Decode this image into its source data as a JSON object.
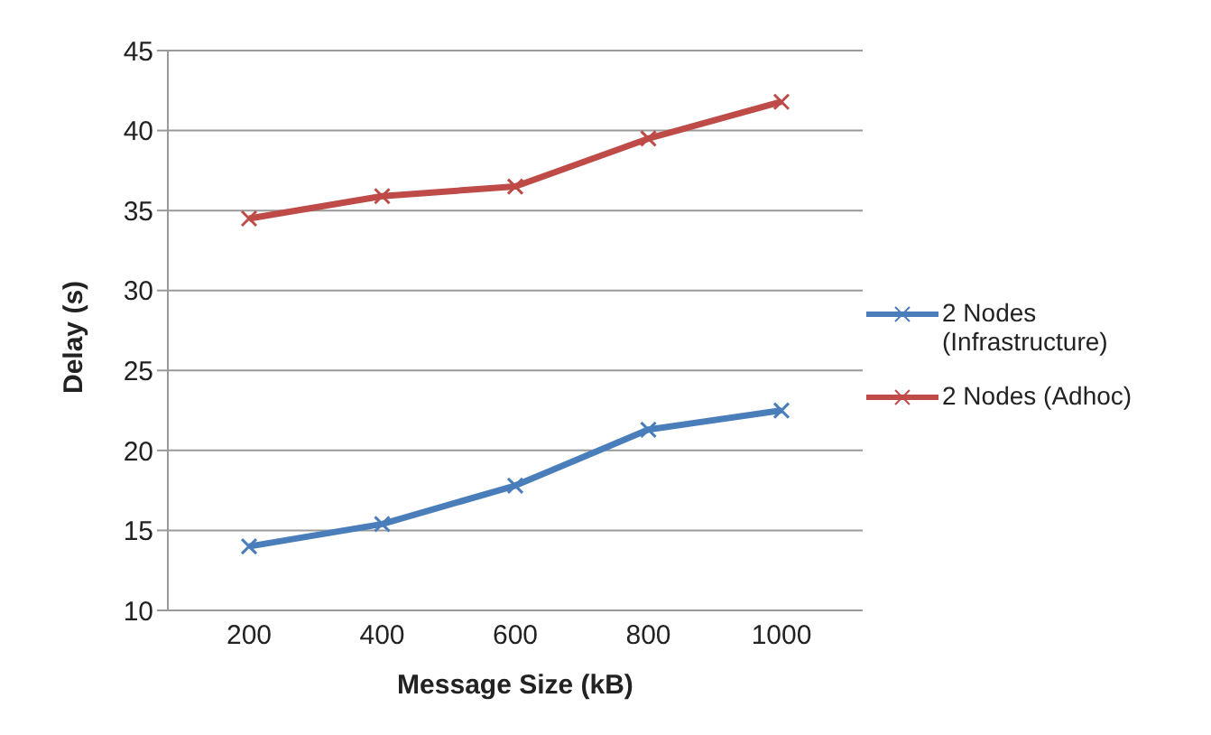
{
  "chart_data": {
    "type": "line",
    "xlabel": "Message Size (kB)",
    "ylabel": "Delay (s)",
    "categories": [
      "200",
      "400",
      "600",
      "800",
      "1000"
    ],
    "series": [
      {
        "name": "2 Nodes (Infrastructure)",
        "color": "#4a7ebb",
        "values": [
          14.0,
          15.4,
          17.8,
          21.3,
          22.5
        ]
      },
      {
        "name": "2 Nodes (Adhoc)",
        "color": "#be4b48",
        "values": [
          34.5,
          35.9,
          36.5,
          39.5,
          41.8
        ]
      }
    ],
    "ylim": [
      10,
      45
    ],
    "yticks": [
      10,
      15,
      20,
      25,
      30,
      35,
      40,
      45
    ],
    "grid": "y",
    "legend": "right",
    "marker": "cross",
    "line_style": "solid"
  }
}
